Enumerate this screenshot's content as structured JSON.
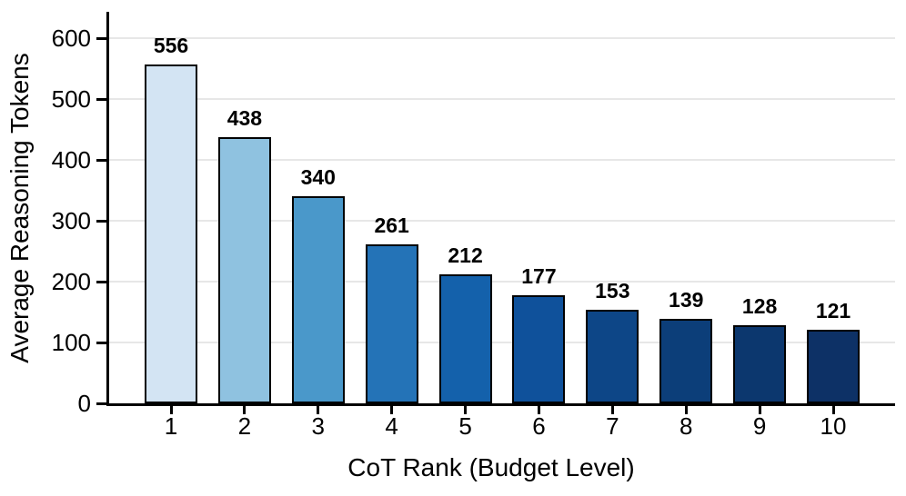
{
  "chart_data": {
    "type": "bar",
    "title": "",
    "xlabel": "CoT Rank (Budget Level)",
    "ylabel": "Average Reasoning Tokens",
    "categories": [
      "1",
      "2",
      "3",
      "4",
      "5",
      "6",
      "7",
      "8",
      "9",
      "10"
    ],
    "values": [
      556,
      438,
      340,
      261,
      212,
      177,
      153,
      139,
      128,
      121
    ],
    "value_labels": [
      "556",
      "438",
      "340",
      "261",
      "212",
      "177",
      "153",
      "139",
      "128",
      "121"
    ],
    "bar_colors": [
      "#d3e4f3",
      "#8fc2e0",
      "#4a98ca",
      "#2473b7",
      "#1461ab",
      "#0f519b",
      "#0d4687",
      "#0c3e79",
      "#0c376e",
      "#0d3166"
    ],
    "bar_border_color": "#000000",
    "yticks": [
      "0",
      "100",
      "200",
      "300",
      "400",
      "500",
      "600"
    ],
    "ylim": [
      0,
      643
    ],
    "grid": "horizontal",
    "gridline_color": "#e7e7e7",
    "axis_color": "#000000",
    "text_color": "#000000",
    "value_label_style": "bold",
    "legend": "none",
    "background": "#ffffff"
  }
}
